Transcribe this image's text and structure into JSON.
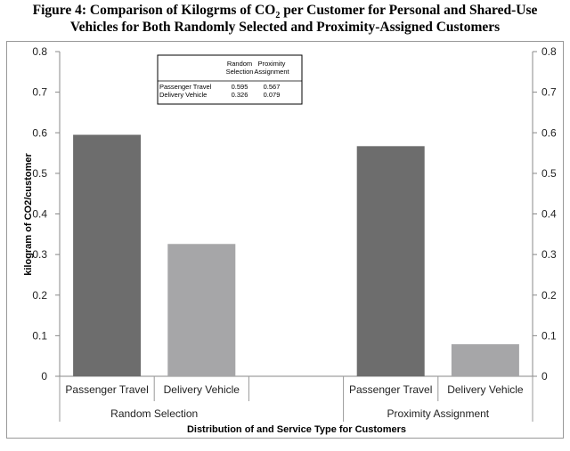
{
  "figure_title": {
    "prefix": "Figure 4:  Comparison of Kilogrms of CO",
    "sub": "2",
    "suffix": " per Customer for Personal and Shared-Use",
    "line2": "Vehicles for Both Randomly Selected and Proximity-Assigned Customers"
  },
  "chart_data": {
    "type": "bar",
    "title": "Comparison of Kilogrms of CO2 per Customer for Personal and Shared-Use Vehicles for Both Randomly Selected and Proximity-Assigned Customers",
    "groups": [
      {
        "name": "Random Selection",
        "bars": [
          {
            "label": "Passenger Travel",
            "value": 0.595,
            "color": "#6d6d6d"
          },
          {
            "label": "Delivery Vehicle",
            "value": 0.326,
            "color": "#a6a6a8"
          }
        ]
      },
      {
        "name": "Proximity Assignment",
        "bars": [
          {
            "label": "Passenger Travel",
            "value": 0.567,
            "color": "#6d6d6d"
          },
          {
            "label": "Delivery Vehicle",
            "value": 0.079,
            "color": "#a6a6a8"
          }
        ]
      }
    ],
    "ylabel": "kilogram of CO2/customer",
    "xlabel": "Distribution of and Service Type for Customers",
    "ylim": [
      0,
      0.8
    ],
    "yticks": [
      0,
      0.1,
      0.2,
      0.3,
      0.4,
      0.5,
      0.6,
      0.7,
      0.8
    ],
    "ytick_labels": [
      "0",
      "0.1",
      "0.2",
      "0.3",
      "0.4",
      "0.5",
      "0.6",
      "0.7",
      "0.8"
    ],
    "secondary_y_axis": true,
    "grid": false,
    "data_table": {
      "col_headers": [
        [
          "Random",
          "Selection"
        ],
        [
          "Proximity",
          "Assignment"
        ]
      ],
      "rows": [
        {
          "label": "Passenger Travel",
          "values": [
            "0.595",
            "0.567"
          ]
        },
        {
          "label": "Delivery Vehicle",
          "values": [
            "0.326",
            "0.079"
          ]
        }
      ]
    }
  }
}
